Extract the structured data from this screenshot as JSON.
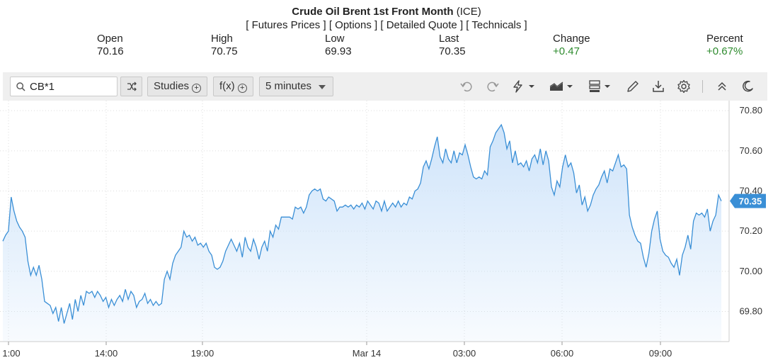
{
  "header": {
    "title_bold": "Crude Oil Brent 1st Front Month",
    "title_suffix": " (ICE)",
    "links": [
      "[ Futures Prices ]",
      "[ Options ]",
      "[ Detailed Quote ]",
      "[ Technicals ]"
    ],
    "stats": [
      {
        "label": "Open",
        "value": "70.16"
      },
      {
        "label": "High",
        "value": "70.75"
      },
      {
        "label": "Low",
        "value": "69.93"
      },
      {
        "label": "Last",
        "value": "70.35"
      },
      {
        "label": "Change",
        "value": "+0.47"
      },
      {
        "label": "Percent",
        "value": "+0.67%"
      }
    ],
    "positive_color": "#2e8b2e"
  },
  "toolbar": {
    "search_value": "CB*1",
    "studies_label": "Studies",
    "fx_label": "f(x)",
    "interval_label": "5 minutes",
    "icons": [
      "search-icon",
      "compare-icon",
      "undo-icon",
      "redo-icon",
      "lightning-icon",
      "chart-type-icon",
      "layout-icon",
      "pencil-icon",
      "download-icon",
      "settings-icon",
      "collapse-icon",
      "dark-mode-icon"
    ]
  },
  "chart_data": {
    "type": "area",
    "line_color": "#3a8fd6",
    "fill_color": "#d6e9fb",
    "last_value": 70.35,
    "last_label": "70.35",
    "ylim": [
      69.65,
      70.85
    ],
    "y_ticks": [
      69.8,
      70.0,
      70.2,
      70.4,
      70.6,
      70.8
    ],
    "y_tick_labels": [
      "69.80",
      "70.00",
      "70.20",
      "70.40",
      "70.60",
      "70.80"
    ],
    "x_tick_labels": [
      "1:00",
      "14:00",
      "19:00",
      "Mar 14",
      "03:00",
      "06:00",
      "09:00"
    ],
    "grid": true,
    "values": [
      70.15,
      70.18,
      70.2,
      70.37,
      70.3,
      70.25,
      70.22,
      70.2,
      70.17,
      70.05,
      69.98,
      70.02,
      69.98,
      70.03,
      69.96,
      69.85,
      69.84,
      69.83,
      69.79,
      69.82,
      69.75,
      69.82,
      69.74,
      69.79,
      69.84,
      69.76,
      69.86,
      69.8,
      69.88,
      69.83,
      69.9,
      69.89,
      69.9,
      69.87,
      69.9,
      69.88,
      69.85,
      69.87,
      69.82,
      69.86,
      69.83,
      69.86,
      69.88,
      69.85,
      69.91,
      69.86,
      69.9,
      69.88,
      69.82,
      69.85,
      69.86,
      69.89,
      69.84,
      69.86,
      69.83,
      69.85,
      69.83,
      69.84,
      69.96,
      70.0,
      69.96,
      70.04,
      70.08,
      70.1,
      70.12,
      70.2,
      70.17,
      70.18,
      70.15,
      70.17,
      70.13,
      70.14,
      70.12,
      70.14,
      70.1,
      70.08,
      70.02,
      70.01,
      70.02,
      70.05,
      70.1,
      70.13,
      70.16,
      70.13,
      70.1,
      70.14,
      70.07,
      70.17,
      70.12,
      70.1,
      70.16,
      70.12,
      70.06,
      70.12,
      70.15,
      70.1,
      70.2,
      70.17,
      70.23,
      70.21,
      70.27,
      70.27,
      70.27,
      70.27,
      70.26,
      70.32,
      70.31,
      70.32,
      70.29,
      70.32,
      70.38,
      70.4,
      70.41,
      70.4,
      70.41,
      70.36,
      70.35,
      70.37,
      70.36,
      70.35,
      70.3,
      70.32,
      70.32,
      70.33,
      70.32,
      70.33,
      70.31,
      70.33,
      70.32,
      70.34,
      70.31,
      70.35,
      70.33,
      70.31,
      70.35,
      70.34,
      70.3,
      70.35,
      70.3,
      70.32,
      70.34,
      70.32,
      70.35,
      70.32,
      70.34,
      70.33,
      70.37,
      70.36,
      70.4,
      70.41,
      70.44,
      70.52,
      70.55,
      70.51,
      70.56,
      70.62,
      70.67,
      70.57,
      70.54,
      70.61,
      70.56,
      70.54,
      70.6,
      70.54,
      70.59,
      70.58,
      70.63,
      70.58,
      70.52,
      70.47,
      70.46,
      70.47,
      70.46,
      70.5,
      70.48,
      70.62,
      70.65,
      70.69,
      70.71,
      70.73,
      70.69,
      70.61,
      70.65,
      70.54,
      70.6,
      70.53,
      70.54,
      70.52,
      70.55,
      70.5,
      70.56,
      70.58,
      70.54,
      70.61,
      70.53,
      70.6,
      70.55,
      70.42,
      70.38,
      70.45,
      70.42,
      70.52,
      70.58,
      70.52,
      70.54,
      70.49,
      70.39,
      70.43,
      70.33,
      70.37,
      70.3,
      70.33,
      70.38,
      70.41,
      70.43,
      70.47,
      70.5,
      70.44,
      70.51,
      70.5,
      70.54,
      70.58,
      70.52,
      70.53,
      70.51,
      70.28,
      70.22,
      70.18,
      70.15,
      70.14,
      70.07,
      70.02,
      70.09,
      70.2,
      70.26,
      70.3,
      70.16,
      70.1,
      70.08,
      70.07,
      70.04,
      70.02,
      70.06,
      69.98,
      70.08,
      70.12,
      70.18,
      70.11,
      70.25,
      70.29,
      70.28,
      70.29,
      70.27,
      70.31,
      70.2,
      70.25,
      70.28,
      70.38,
      70.35
    ]
  }
}
